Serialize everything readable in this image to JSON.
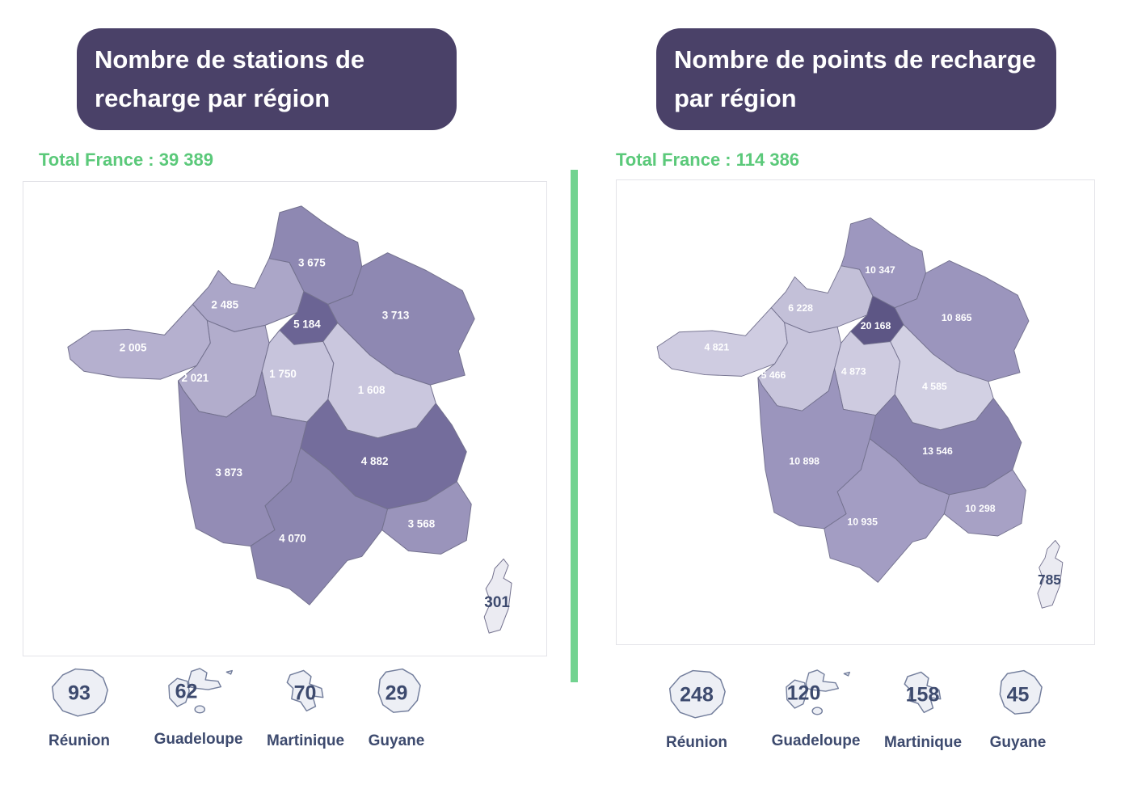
{
  "colors": {
    "title_bg": "#4a4168",
    "title_text": "#ffffff",
    "total_text": "#5bc97a",
    "divider": "#72d390",
    "map_border": "#e3e3e8",
    "region_border": "#73718e",
    "region_label": "#ffffff",
    "dark_label": "#3d4a6e",
    "island_fill": "#edeff5",
    "island_stroke": "#737e9c"
  },
  "panels": [
    {
      "id": "stations",
      "title": "Nombre de stations de recharge par région",
      "total": "Total France : 39 389",
      "regions": [
        {
          "id": "hauts-de-france",
          "name": "Hauts-de-France",
          "value": "3 675",
          "fill": "#8e88b2"
        },
        {
          "id": "normandie",
          "name": "Normandie",
          "value": "2 485",
          "fill": "#aba6c8"
        },
        {
          "id": "ile-de-france",
          "name": "Île-de-France",
          "value": "5 184",
          "fill": "#6b6494"
        },
        {
          "id": "grand-est",
          "name": "Grand Est",
          "value": "3 713",
          "fill": "#8e88b2"
        },
        {
          "id": "bretagne",
          "name": "Bretagne",
          "value": "2 005",
          "fill": "#b5b0cf"
        },
        {
          "id": "pays-de-la-loire",
          "name": "Pays de la Loire",
          "value": "2 021",
          "fill": "#b2adcc"
        },
        {
          "id": "centre-val-de-loire",
          "name": "Centre-Val de Loire",
          "value": "1 750",
          "fill": "#c7c4dc"
        },
        {
          "id": "bourgogne-franche-comte",
          "name": "Bourgogne-Franche-Comté",
          "value": "1 608",
          "fill": "#cac7de"
        },
        {
          "id": "nouvelle-aquitaine",
          "name": "Nouvelle-Aquitaine",
          "value": "3 873",
          "fill": "#938cb5"
        },
        {
          "id": "auvergne-rhone-alpes",
          "name": "Auvergne-Rhône-Alpes",
          "value": "4 882",
          "fill": "#746d9c"
        },
        {
          "id": "occitanie",
          "name": "Occitanie",
          "value": "4 070",
          "fill": "#8b85af"
        },
        {
          "id": "provence-alpes-cote-d-azur",
          "name": "Provence-Alpes-Côte d'Azur",
          "value": "3 568",
          "fill": "#9a94bb"
        },
        {
          "id": "corse",
          "name": "Corse",
          "value": "301",
          "fill": "#ebebf2"
        }
      ],
      "overseas": [
        {
          "name": "Réunion",
          "value": "93"
        },
        {
          "name": "Guadeloupe",
          "value": "62"
        },
        {
          "name": "Martinique",
          "value": "70"
        },
        {
          "name": "Guyane",
          "value": "29"
        }
      ]
    },
    {
      "id": "points",
      "title": "Nombre de points de recharge par région",
      "total": "Total France : 114 386",
      "regions": [
        {
          "id": "hauts-de-france",
          "name": "Hauts-de-France",
          "value": "10 347",
          "fill": "#9d97bf"
        },
        {
          "id": "normandie",
          "name": "Normandie",
          "value": "6 228",
          "fill": "#c3c0d8"
        },
        {
          "id": "ile-de-france",
          "name": "Île-de-France",
          "value": "20 168",
          "fill": "#5d5685"
        },
        {
          "id": "grand-est",
          "name": "Grand Est",
          "value": "10 865",
          "fill": "#9b95bd"
        },
        {
          "id": "bretagne",
          "name": "Bretagne",
          "value": "4 821",
          "fill": "#cfcce1"
        },
        {
          "id": "pays-de-la-loire",
          "name": "Pays de la Loire",
          "value": "5 466",
          "fill": "#c8c5dc"
        },
        {
          "id": "centre-val-de-loire",
          "name": "Centre-Val de Loire",
          "value": "4 873",
          "fill": "#cecbe0"
        },
        {
          "id": "bourgogne-franche-comte",
          "name": "Bourgogne-Franche-Comté",
          "value": "4 585",
          "fill": "#d2d0e3"
        },
        {
          "id": "nouvelle-aquitaine",
          "name": "Nouvelle-Aquitaine",
          "value": "10 898",
          "fill": "#9b95bd"
        },
        {
          "id": "auvergne-rhone-alpes",
          "name": "Auvergne-Rhône-Alpes",
          "value": "13 546",
          "fill": "#8781ac"
        },
        {
          "id": "occitanie",
          "name": "Occitanie",
          "value": "10 935",
          "fill": "#a39dc3"
        },
        {
          "id": "provence-alpes-cote-d-azur",
          "name": "Provence-Alpes-Côte d'Azur",
          "value": "10 298",
          "fill": "#a7a1c5"
        },
        {
          "id": "corse",
          "name": "Corse",
          "value": "785",
          "fill": "#ebebf2"
        }
      ],
      "overseas": [
        {
          "name": "Réunion",
          "value": "248"
        },
        {
          "name": "Guadeloupe",
          "value": "120"
        },
        {
          "name": "Martinique",
          "value": "158"
        },
        {
          "name": "Guyane",
          "value": "45"
        }
      ]
    }
  ],
  "chart_data": [
    {
      "type": "choropleth_map",
      "title": "Nombre de stations de recharge par région",
      "total_label": "Total France : 39 389",
      "total": 39389,
      "regions": {
        "Hauts-de-France": 3675,
        "Normandie": 2485,
        "Île-de-France": 5184,
        "Grand Est": 3713,
        "Bretagne": 2005,
        "Pays de la Loire": 2021,
        "Centre-Val de Loire": 1750,
        "Bourgogne-Franche-Comté": 1608,
        "Nouvelle-Aquitaine": 3873,
        "Auvergne-Rhône-Alpes": 4882,
        "Occitanie": 4070,
        "Provence-Alpes-Côte d'Azur": 3568,
        "Corse": 301,
        "Réunion": 93,
        "Guadeloupe": 62,
        "Martinique": 70,
        "Guyane": 29
      }
    },
    {
      "type": "choropleth_map",
      "title": "Nombre de points de recharge par région",
      "total_label": "Total France : 114 386",
      "total": 114386,
      "regions": {
        "Hauts-de-France": 10347,
        "Normandie": 6228,
        "Île-de-France": 20168,
        "Grand Est": 10865,
        "Bretagne": 4821,
        "Pays de la Loire": 5466,
        "Centre-Val de Loire": 4873,
        "Bourgogne-Franche-Comté": 4585,
        "Nouvelle-Aquitaine": 10898,
        "Auvergne-Rhône-Alpes": 13546,
        "Occitanie": 10935,
        "Provence-Alpes-Côte d'Azur": 10298,
        "Corse": 785,
        "Réunion": 248,
        "Guadeloupe": 120,
        "Martinique": 158,
        "Guyane": 45
      }
    }
  ]
}
